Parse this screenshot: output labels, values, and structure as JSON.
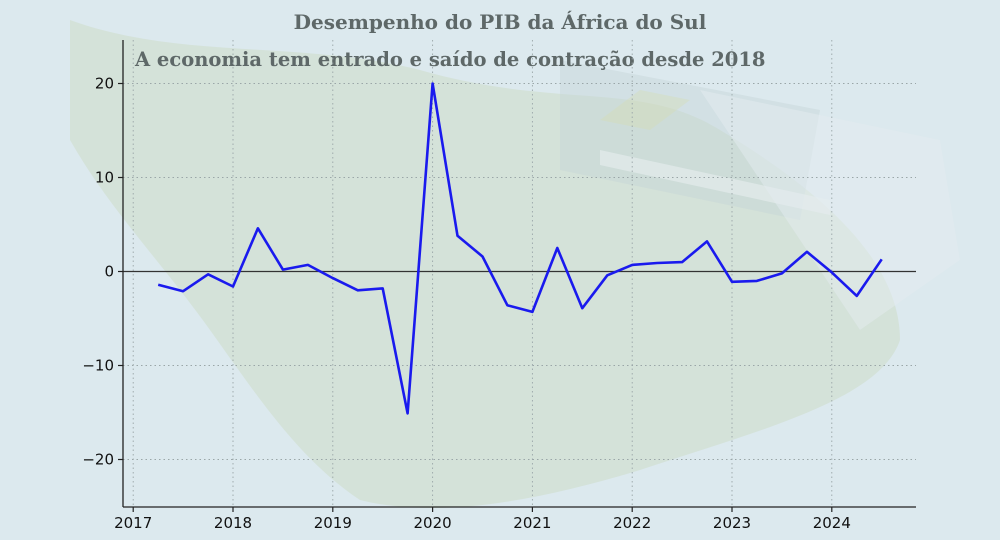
{
  "header": {
    "title": "Desempenho do PIB da África do Sul",
    "subtitle": "A economia tem entrado e saído de contração desde 2018"
  },
  "chart_data": {
    "type": "line",
    "title": "Desempenho do PIB da África do Sul",
    "subtitle": "A economia tem entrado e saído de contração desde 2018",
    "xlabel": "",
    "ylabel": "",
    "xlim": [
      2016.9,
      2024.85
    ],
    "ylim": [
      -25,
      24.5
    ],
    "x_ticks": [
      2017,
      2018,
      2019,
      2020,
      2021,
      2022,
      2023,
      2024
    ],
    "x_tick_labels": [
      "2017",
      "2018",
      "2019",
      "2020",
      "2021",
      "2022",
      "2023",
      "2024"
    ],
    "y_ticks": [
      -20,
      -10,
      0,
      10,
      20
    ],
    "y_tick_labels": [
      "−20",
      "−10",
      "0",
      "10",
      "20"
    ],
    "grid": true,
    "zero_line": true,
    "series": [
      {
        "color": "#1a1aee",
        "points": [
          [
            2017.25,
            -1.4
          ],
          [
            2017.5,
            -2.1
          ],
          [
            2017.75,
            -0.3
          ],
          [
            2018.0,
            -1.6
          ],
          [
            2018.25,
            4.6
          ],
          [
            2018.5,
            0.2
          ],
          [
            2018.75,
            0.7
          ],
          [
            2019.0,
            -0.7
          ],
          [
            2019.25,
            -2.0
          ],
          [
            2019.5,
            -1.8
          ],
          [
            2019.75,
            -15.1
          ],
          [
            2020.0,
            20.0
          ],
          [
            2020.25,
            3.8
          ],
          [
            2020.5,
            1.6
          ],
          [
            2020.75,
            -3.6
          ],
          [
            2021.0,
            -4.3
          ],
          [
            2021.25,
            2.5
          ],
          [
            2021.5,
            -3.9
          ],
          [
            2021.75,
            -0.4
          ],
          [
            2022.0,
            0.7
          ],
          [
            2022.25,
            0.9
          ],
          [
            2022.5,
            1.0
          ],
          [
            2022.75,
            3.2
          ],
          [
            2023.0,
            -1.1
          ],
          [
            2023.25,
            -1.0
          ],
          [
            2023.5,
            -0.2
          ],
          [
            2023.75,
            2.1
          ],
          [
            2024.0,
            -0.1
          ],
          [
            2024.25,
            -2.6
          ],
          [
            2024.5,
            1.3
          ]
        ]
      }
    ]
  }
}
